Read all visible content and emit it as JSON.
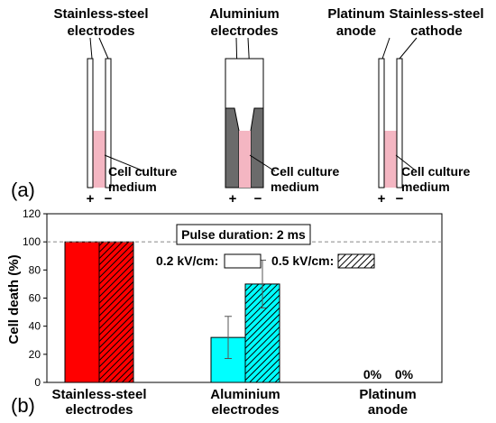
{
  "panel_a": {
    "label": "(a)",
    "cells": [
      {
        "title_lines": [
          "Stainless-steel",
          "electrodes"
        ],
        "medium_lines": [
          "Cell culture",
          "medium"
        ],
        "plus": "+",
        "minus": "−"
      },
      {
        "title_lines": [
          "Aluminium",
          "electrodes"
        ],
        "medium_lines": [
          "Cell culture",
          "medium"
        ],
        "plus": "+",
        "minus": "−"
      },
      {
        "title_left_lines": [
          "Platinum",
          "anode"
        ],
        "title_right_lines": [
          "Stainless-steel",
          "cathode"
        ],
        "medium_lines": [
          "Cell culture",
          "medium"
        ],
        "plus": "+",
        "minus": "−"
      }
    ],
    "colors": {
      "medium": "#f4b6c2",
      "aluminium": "#6b6b6b"
    }
  },
  "panel_b": {
    "label": "(b)",
    "pulse_label": "Pulse duration: 2 ms",
    "legend": [
      {
        "label": "0.2 kV/cm:",
        "pattern": "solid"
      },
      {
        "label": "0.5 kV/cm:",
        "pattern": "hatched"
      }
    ],
    "zero_labels": [
      "0%",
      "0%"
    ]
  },
  "chart_data": {
    "type": "bar",
    "ylabel": "Cell death (%)",
    "ylim": [
      0,
      120
    ],
    "yticks": [
      0,
      20,
      40,
      60,
      80,
      100,
      120
    ],
    "reference_line": 100,
    "categories": [
      {
        "lines": [
          "Stainless-steel",
          "electrodes"
        ]
      },
      {
        "lines": [
          "Aluminium",
          "electrodes"
        ]
      },
      {
        "lines": [
          "Platinum",
          "anode"
        ]
      }
    ],
    "series": [
      {
        "name": "0.2 kV/cm",
        "values": [
          100,
          32,
          0
        ],
        "errors": [
          0,
          15,
          0
        ]
      },
      {
        "name": "0.5 kV/cm",
        "values": [
          100,
          70,
          0
        ],
        "errors": [
          0,
          17,
          0
        ]
      }
    ],
    "colors": [
      "#ff0000",
      "#00ffff",
      "#000000"
    ]
  }
}
